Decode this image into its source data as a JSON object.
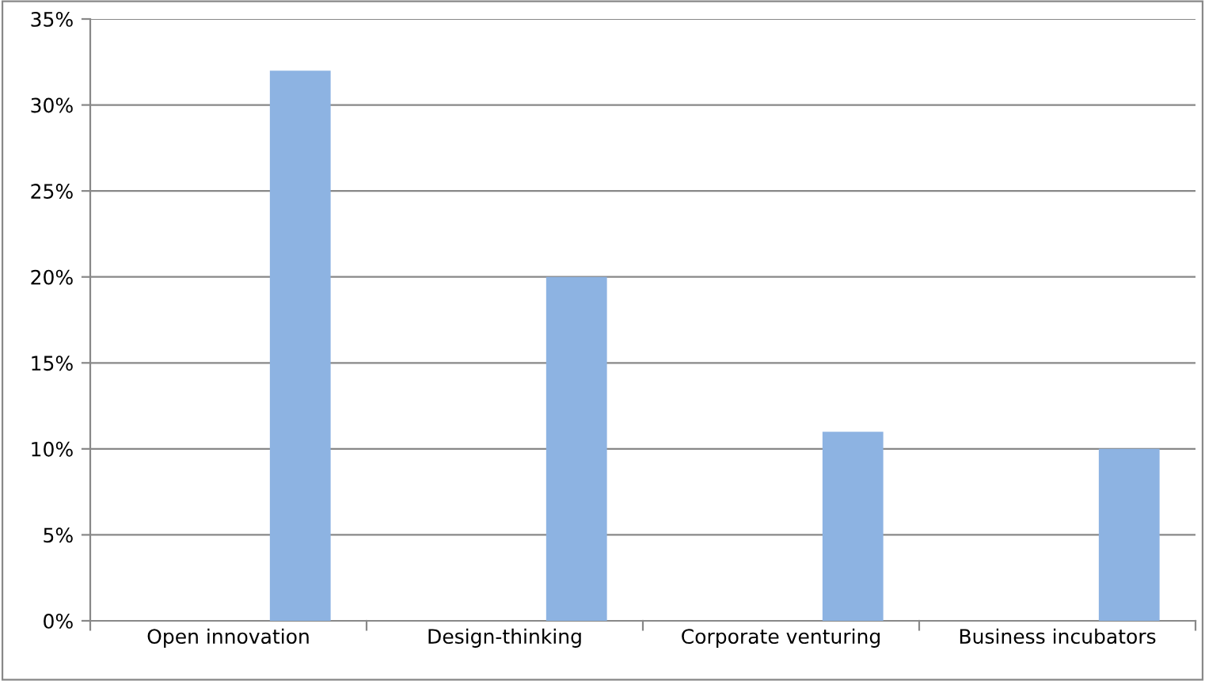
{
  "chart_data": {
    "type": "bar",
    "categories": [
      "Open innovation",
      "Design-thinking",
      "Corporate venturing",
      "Business incubators"
    ],
    "values": [
      32,
      20,
      11,
      10
    ],
    "color": "#8db3e2",
    "ylim": [
      0,
      35
    ],
    "yticks": [
      {
        "value": 0,
        "label": "0%"
      },
      {
        "value": 5,
        "label": "5%"
      },
      {
        "value": 10,
        "label": "10%"
      },
      {
        "value": 15,
        "label": "15%"
      },
      {
        "value": 20,
        "label": "20%"
      },
      {
        "value": 25,
        "label": "25%"
      },
      {
        "value": 30,
        "label": "30%"
      },
      {
        "value": 35,
        "label": "35%"
      }
    ],
    "grid": "y",
    "legend": false
  }
}
